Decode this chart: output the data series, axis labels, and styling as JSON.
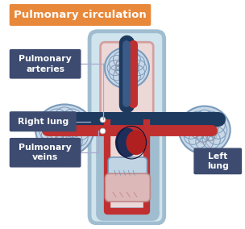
{
  "title": "Pulmonary circulation",
  "title_bg": "#E8883A",
  "title_color": "#FFFFFF",
  "bg_color": "#FFFFFF",
  "label_bg": "#3D4B70",
  "label_color": "#FFFFFF",
  "labels": {
    "pulmonary_arteries": "Pulmonary\narteries",
    "right_lung": "Right lung",
    "pulmonary_veins": "Pulmonary\nveins",
    "left_lung": "Left\nlung"
  },
  "dark_blue": "#1E3A5F",
  "mid_blue": "#4A6FA5",
  "light_blue": "#A0BDD0",
  "very_light_blue": "#D0E4EE",
  "dark_red": "#8B1A1A",
  "mid_red": "#C03030",
  "light_red": "#D4A0A0",
  "very_light_red": "#EDD8D8",
  "heart_dark": "#1E2E5A",
  "heart_red": "#B02020",
  "connector_color": "#AAAACC"
}
